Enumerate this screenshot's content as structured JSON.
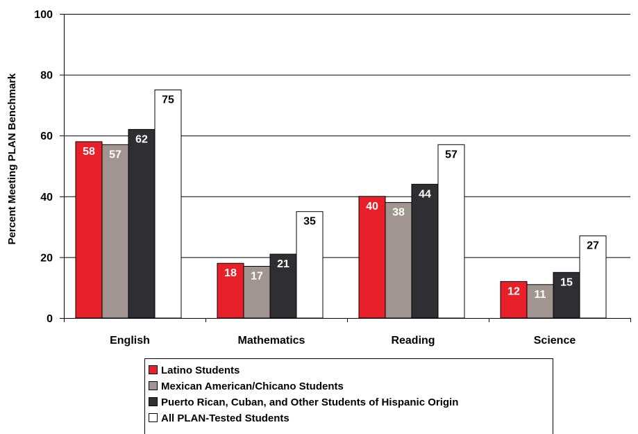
{
  "chart_data": {
    "type": "bar",
    "title": "",
    "xlabel": "",
    "ylabel": "Percent Meeting PLAN Benchmark",
    "ylim": [
      0,
      100
    ],
    "yticks": [
      0,
      20,
      40,
      60,
      80,
      100
    ],
    "grid": true,
    "legend_position": "bottom",
    "categories": [
      "English",
      "Mathematics",
      "Reading",
      "Science"
    ],
    "series": [
      {
        "name": "Latino Students",
        "values": [
          58,
          18,
          40,
          12
        ],
        "color": "#e8202a",
        "label_color": "#ffffff"
      },
      {
        "name": "Mexican American/Chicano Students",
        "values": [
          57,
          17,
          38,
          11
        ],
        "color": "#a09590",
        "label_color": "#ffffff"
      },
      {
        "name": "Puerto Rican, Cuban, and Other Students of Hispanic Origin",
        "values": [
          62,
          21,
          44,
          15
        ],
        "color": "#2f2f33",
        "label_color": "#ffffff"
      },
      {
        "name": "All PLAN-Tested Students",
        "values": [
          75,
          35,
          57,
          27
        ],
        "color": "#ffffff",
        "label_color": "#000000"
      }
    ]
  }
}
